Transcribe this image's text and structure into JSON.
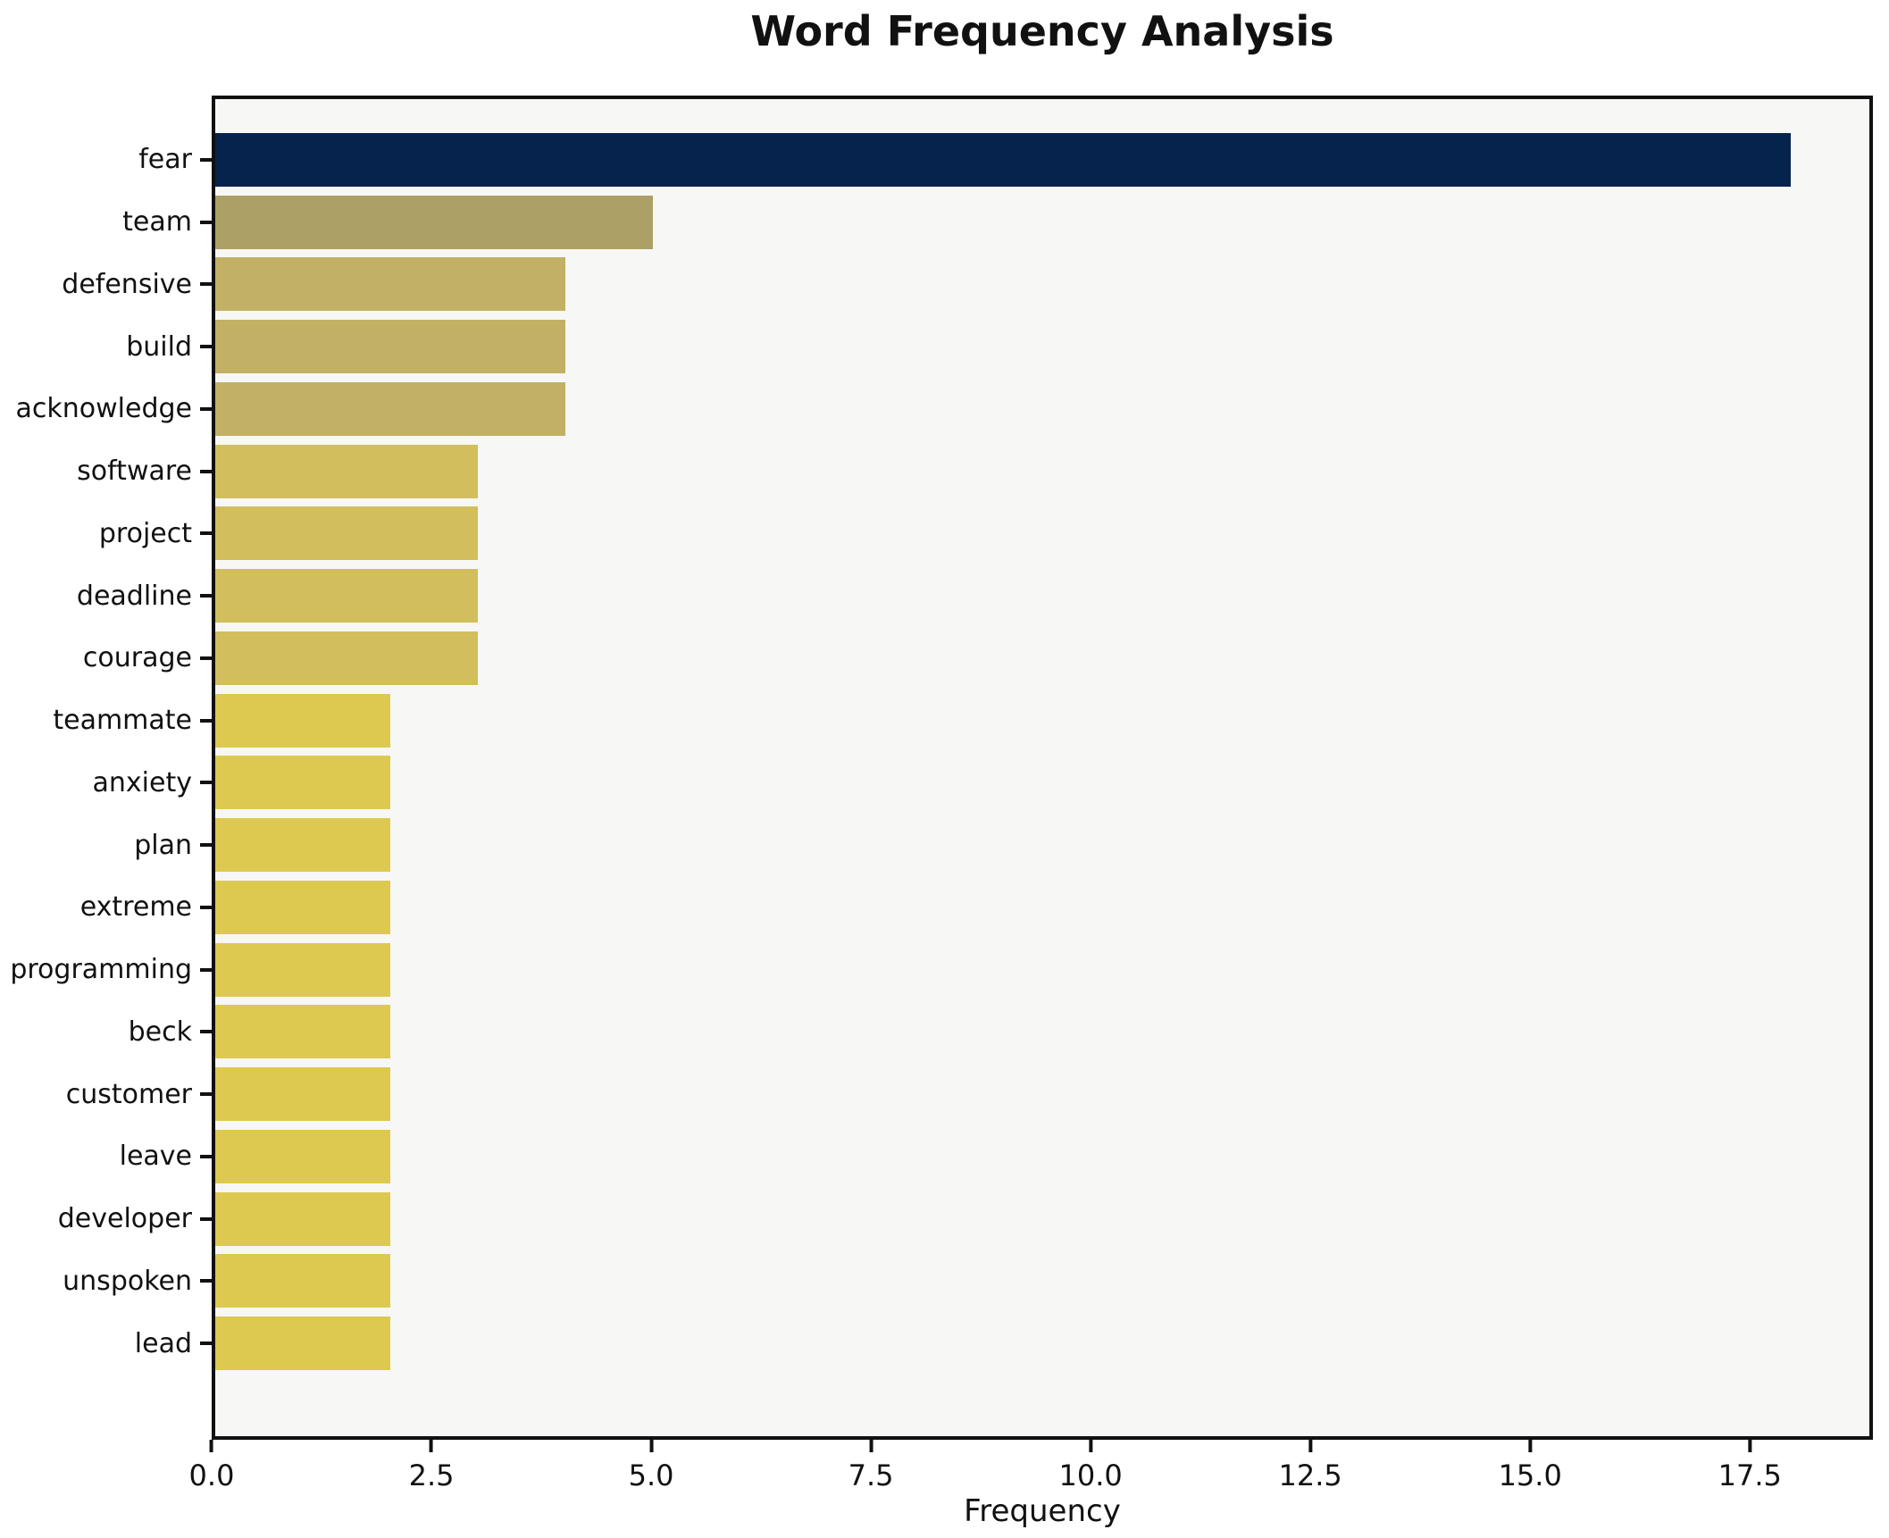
{
  "title": "Word Frequency Analysis",
  "chart_data": {
    "type": "bar",
    "orientation": "horizontal",
    "title": "Word Frequency Analysis",
    "xlabel": "Frequency",
    "ylabel": "",
    "categories": [
      "fear",
      "team",
      "defensive",
      "build",
      "acknowledge",
      "software",
      "project",
      "deadline",
      "courage",
      "teammate",
      "anxiety",
      "plan",
      "extreme",
      "programming",
      "beck",
      "customer",
      "leave",
      "developer",
      "unspoken",
      "lead"
    ],
    "values": [
      18,
      5,
      4,
      4,
      4,
      3,
      3,
      3,
      3,
      2,
      2,
      2,
      2,
      2,
      2,
      2,
      2,
      2,
      2,
      2
    ],
    "bar_colors": [
      "#05234c",
      "#ada067",
      "#c2b164",
      "#c2b164",
      "#c2b164",
      "#d2be5c",
      "#d2be5c",
      "#d2be5c",
      "#d2be5c",
      "#ddc94f",
      "#ddc94f",
      "#ddc94f",
      "#ddc94f",
      "#ddc94f",
      "#ddc94f",
      "#ddc94f",
      "#ddc94f",
      "#ddc94f",
      "#ddc94f",
      "#ddc94f"
    ],
    "xlim": [
      0,
      18.9
    ],
    "xticks": [
      0,
      2.5,
      5,
      7.5,
      10,
      12.5,
      15,
      17.5
    ],
    "xtick_labels": [
      "0.0",
      "2.5",
      "5.0",
      "7.5",
      "10.0",
      "12.5",
      "15.0",
      "17.5"
    ],
    "grid": false,
    "legend": "none",
    "plot_background": "#f7f7f5",
    "figure_background": "#ffffff",
    "spine_color": "#111111",
    "text_color": "#111111"
  }
}
